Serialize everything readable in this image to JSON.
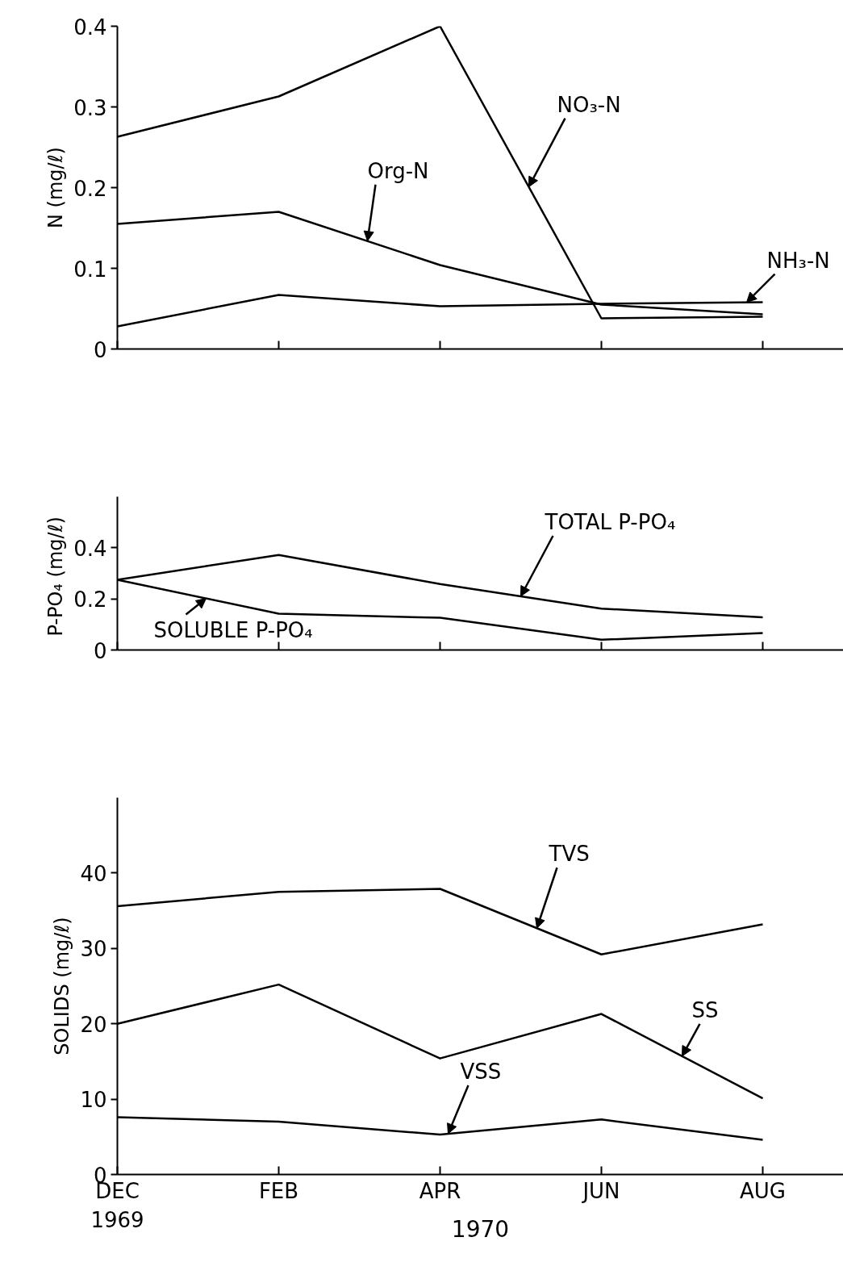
{
  "chart_data": [
    {
      "type": "line",
      "ylabel": "N (mg/ℓ)",
      "categories": [
        null,
        null,
        null,
        null,
        null
      ],
      "ylim": [
        0,
        0.4
      ],
      "yticks": [
        0,
        0.1,
        0.2,
        0.3,
        0.4
      ],
      "tick_labels": "y",
      "grid": false,
      "marker": "none",
      "line_style": "solid",
      "series": [
        {
          "name": "NO₃-N",
          "color": "#000000",
          "values": [
            0.263,
            0.313,
            0.4,
            0.038,
            0.04
          ]
        },
        {
          "name": "Org-N",
          "color": "#000000",
          "values": [
            0.155,
            0.17,
            0.104,
            0.055,
            0.043
          ]
        },
        {
          "name": "NH₃-N",
          "color": "#000000",
          "values": [
            0.028,
            0.067,
            0.053,
            0.056,
            0.058
          ]
        }
      ]
    },
    {
      "type": "line",
      "ylabel": "P-PO₄  (mg/ℓ)",
      "categories": [
        null,
        null,
        null,
        null,
        null
      ],
      "ylim": [
        0,
        0.6
      ],
      "yticks": [
        0,
        0.2,
        0.4
      ],
      "tick_labels": "y",
      "grid": false,
      "marker": "none",
      "line_style": "solid",
      "series": [
        {
          "name": "TOTAL P-PO₄",
          "color": "#000000",
          "values": [
            0.275,
            0.372,
            0.258,
            0.162,
            0.128
          ]
        },
        {
          "name": "SOLUBLE P-PO₄",
          "color": "#000000",
          "values": [
            0.275,
            0.142,
            0.126,
            0.04,
            0.066
          ]
        }
      ]
    },
    {
      "type": "line",
      "ylabel": "SOLIDS (mg/ℓ)",
      "xlabel": "1970",
      "categories": [
        "DEC\n1969",
        "FEB",
        "APR",
        "JUN",
        "AUG"
      ],
      "ylim": [
        0,
        50
      ],
      "yticks": [
        0,
        10,
        20,
        30,
        40
      ],
      "grid": false,
      "marker": "none",
      "line_style": "solid",
      "series": [
        {
          "name": "TVS",
          "color": "#000000",
          "values": [
            35.6,
            37.5,
            37.9,
            29.2,
            33.2
          ]
        },
        {
          "name": "SS",
          "color": "#000000",
          "values": [
            20.0,
            25.2,
            15.4,
            21.3,
            10.1
          ]
        },
        {
          "name": "VSS",
          "color": "#000000",
          "values": [
            7.6,
            7.0,
            5.3,
            7.3,
            4.6
          ]
        }
      ]
    }
  ]
}
